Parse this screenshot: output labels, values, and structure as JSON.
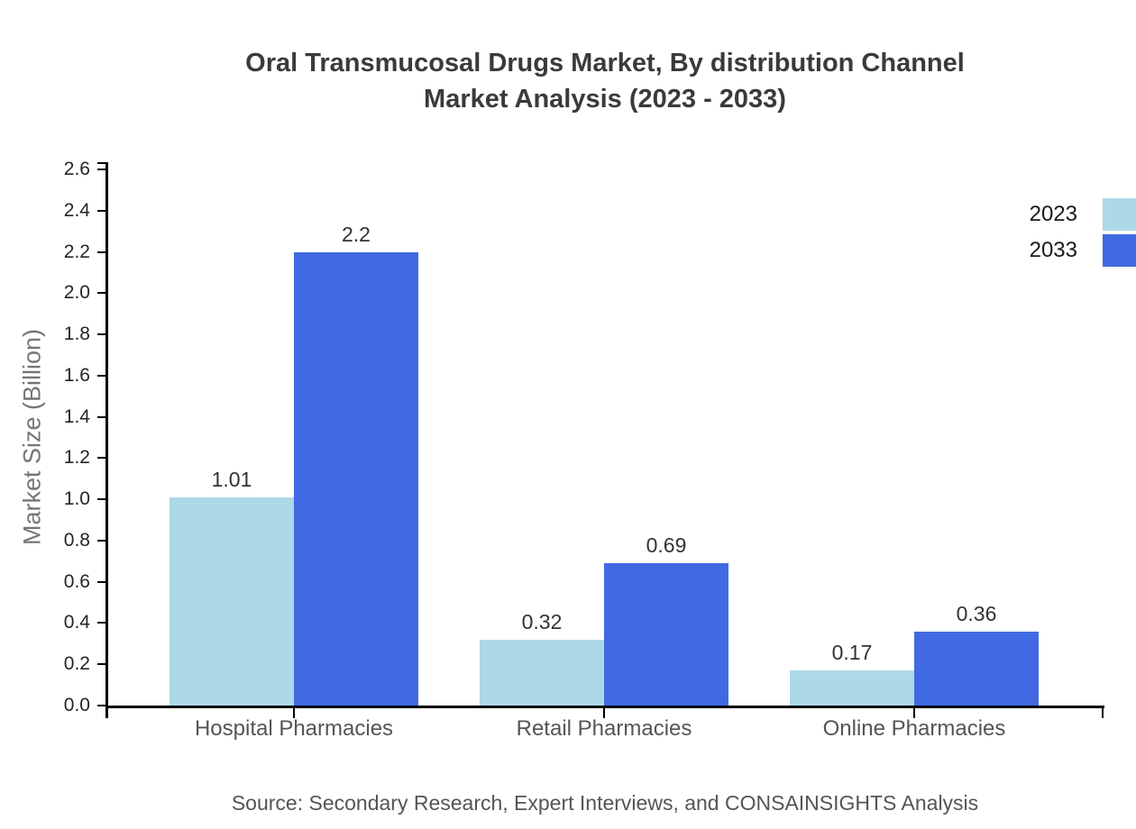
{
  "title": {
    "line1": "Oral Transmucosal Drugs Market, By distribution Channel",
    "line2": "Market Analysis (2023 - 2033)"
  },
  "source_note": "Source: Secondary Research, Expert Interviews, and CONSAINSIGHTS Analysis",
  "chart_data": {
    "type": "bar",
    "title": "Oral Transmucosal Drugs Market, By distribution Channel Market Analysis (2023 - 2033)",
    "categories": [
      "Hospital Pharmacies",
      "Retail Pharmacies",
      "Online Pharmacies"
    ],
    "series": [
      {
        "name": "2023",
        "color": "#ADD8E6",
        "values": [
          1.01,
          0.32,
          0.17
        ]
      },
      {
        "name": "2033",
        "color": "#4169E1",
        "values": [
          2.2,
          0.69,
          0.36
        ]
      }
    ],
    "value_labels": {
      "2023": [
        "1.01",
        "0.32",
        "0.17"
      ],
      "2033": [
        "2.2",
        "0.69",
        "0.36"
      ]
    },
    "xlabel": "",
    "ylabel": "Market Size (Billion)",
    "ylim": [
      0.0,
      2.6
    ],
    "ytick_step": 0.2,
    "ytick_labels": [
      "0.0",
      "0.2",
      "0.4",
      "0.6",
      "0.8",
      "1.0",
      "1.2",
      "1.4",
      "1.6",
      "1.8",
      "2.0",
      "2.2",
      "2.4",
      "2.6"
    ],
    "grid": false,
    "legend_position": "top-right"
  },
  "colors": {
    "background": "#ffffff",
    "axis": "#000000",
    "title_text": "#3a3a3a",
    "tick_label": "#262626",
    "value_label": "#333333",
    "category_label": "#555555",
    "y_axis_title": "#757575",
    "source_text": "#555555",
    "series_2023": "#ADD8E6",
    "series_2033": "#4169E1"
  }
}
